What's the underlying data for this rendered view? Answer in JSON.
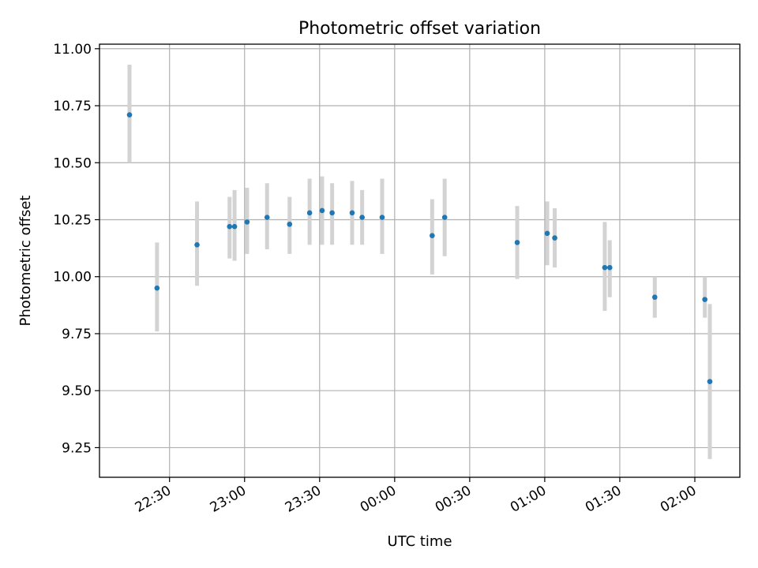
{
  "chart_data": {
    "type": "scatter",
    "title": "Photometric offset variation",
    "xlabel": "UTC time",
    "ylabel": "Photometric offset",
    "ylim": [
      9.12,
      11.02
    ],
    "xlim": [
      "22:02",
      "02:18"
    ],
    "grid": true,
    "colors": {
      "point": "#1f77b4",
      "errorbar": "#d3d3d3"
    },
    "yticks": [
      9.25,
      9.5,
      9.75,
      10.0,
      10.25,
      10.5,
      10.75,
      11.0
    ],
    "ytick_labels": [
      "9.25",
      "9.50",
      "9.75",
      "10.00",
      "10.25",
      "10.50",
      "10.75",
      "11.00"
    ],
    "xticks": [
      "22:30",
      "23:00",
      "23:30",
      "00:00",
      "00:30",
      "01:00",
      "01:30",
      "02:00"
    ],
    "points": [
      {
        "x": "22:14",
        "y": 10.71,
        "lo": 10.5,
        "hi": 10.93
      },
      {
        "x": "22:25",
        "y": 9.95,
        "lo": 9.76,
        "hi": 10.15
      },
      {
        "x": "22:41",
        "y": 10.14,
        "lo": 9.96,
        "hi": 10.33
      },
      {
        "x": "22:54",
        "y": 10.22,
        "lo": 10.08,
        "hi": 10.35
      },
      {
        "x": "22:56",
        "y": 10.22,
        "lo": 10.07,
        "hi": 10.38
      },
      {
        "x": "23:01",
        "y": 10.24,
        "lo": 10.1,
        "hi": 10.39
      },
      {
        "x": "23:09",
        "y": 10.26,
        "lo": 10.12,
        "hi": 10.41
      },
      {
        "x": "23:18",
        "y": 10.23,
        "lo": 10.1,
        "hi": 10.35
      },
      {
        "x": "23:26",
        "y": 10.28,
        "lo": 10.14,
        "hi": 10.43
      },
      {
        "x": "23:31",
        "y": 10.29,
        "lo": 10.14,
        "hi": 10.44
      },
      {
        "x": "23:35",
        "y": 10.28,
        "lo": 10.14,
        "hi": 10.41
      },
      {
        "x": "23:43",
        "y": 10.28,
        "lo": 10.14,
        "hi": 10.42
      },
      {
        "x": "23:47",
        "y": 10.26,
        "lo": 10.14,
        "hi": 10.38
      },
      {
        "x": "23:55",
        "y": 10.26,
        "lo": 10.1,
        "hi": 10.43
      },
      {
        "x": "00:15",
        "y": 10.18,
        "lo": 10.01,
        "hi": 10.34
      },
      {
        "x": "00:20",
        "y": 10.26,
        "lo": 10.09,
        "hi": 10.43
      },
      {
        "x": "00:49",
        "y": 10.15,
        "lo": 9.99,
        "hi": 10.31
      },
      {
        "x": "01:01",
        "y": 10.19,
        "lo": 10.05,
        "hi": 10.33
      },
      {
        "x": "01:04",
        "y": 10.17,
        "lo": 10.04,
        "hi": 10.3
      },
      {
        "x": "01:24",
        "y": 10.04,
        "lo": 9.85,
        "hi": 10.24
      },
      {
        "x": "01:26",
        "y": 10.04,
        "lo": 9.91,
        "hi": 10.16
      },
      {
        "x": "01:44",
        "y": 9.91,
        "lo": 9.82,
        "hi": 10.0
      },
      {
        "x": "02:04",
        "y": 9.9,
        "lo": 9.82,
        "hi": 10.0
      },
      {
        "x": "02:06",
        "y": 9.54,
        "lo": 9.2,
        "hi": 9.88
      }
    ]
  }
}
